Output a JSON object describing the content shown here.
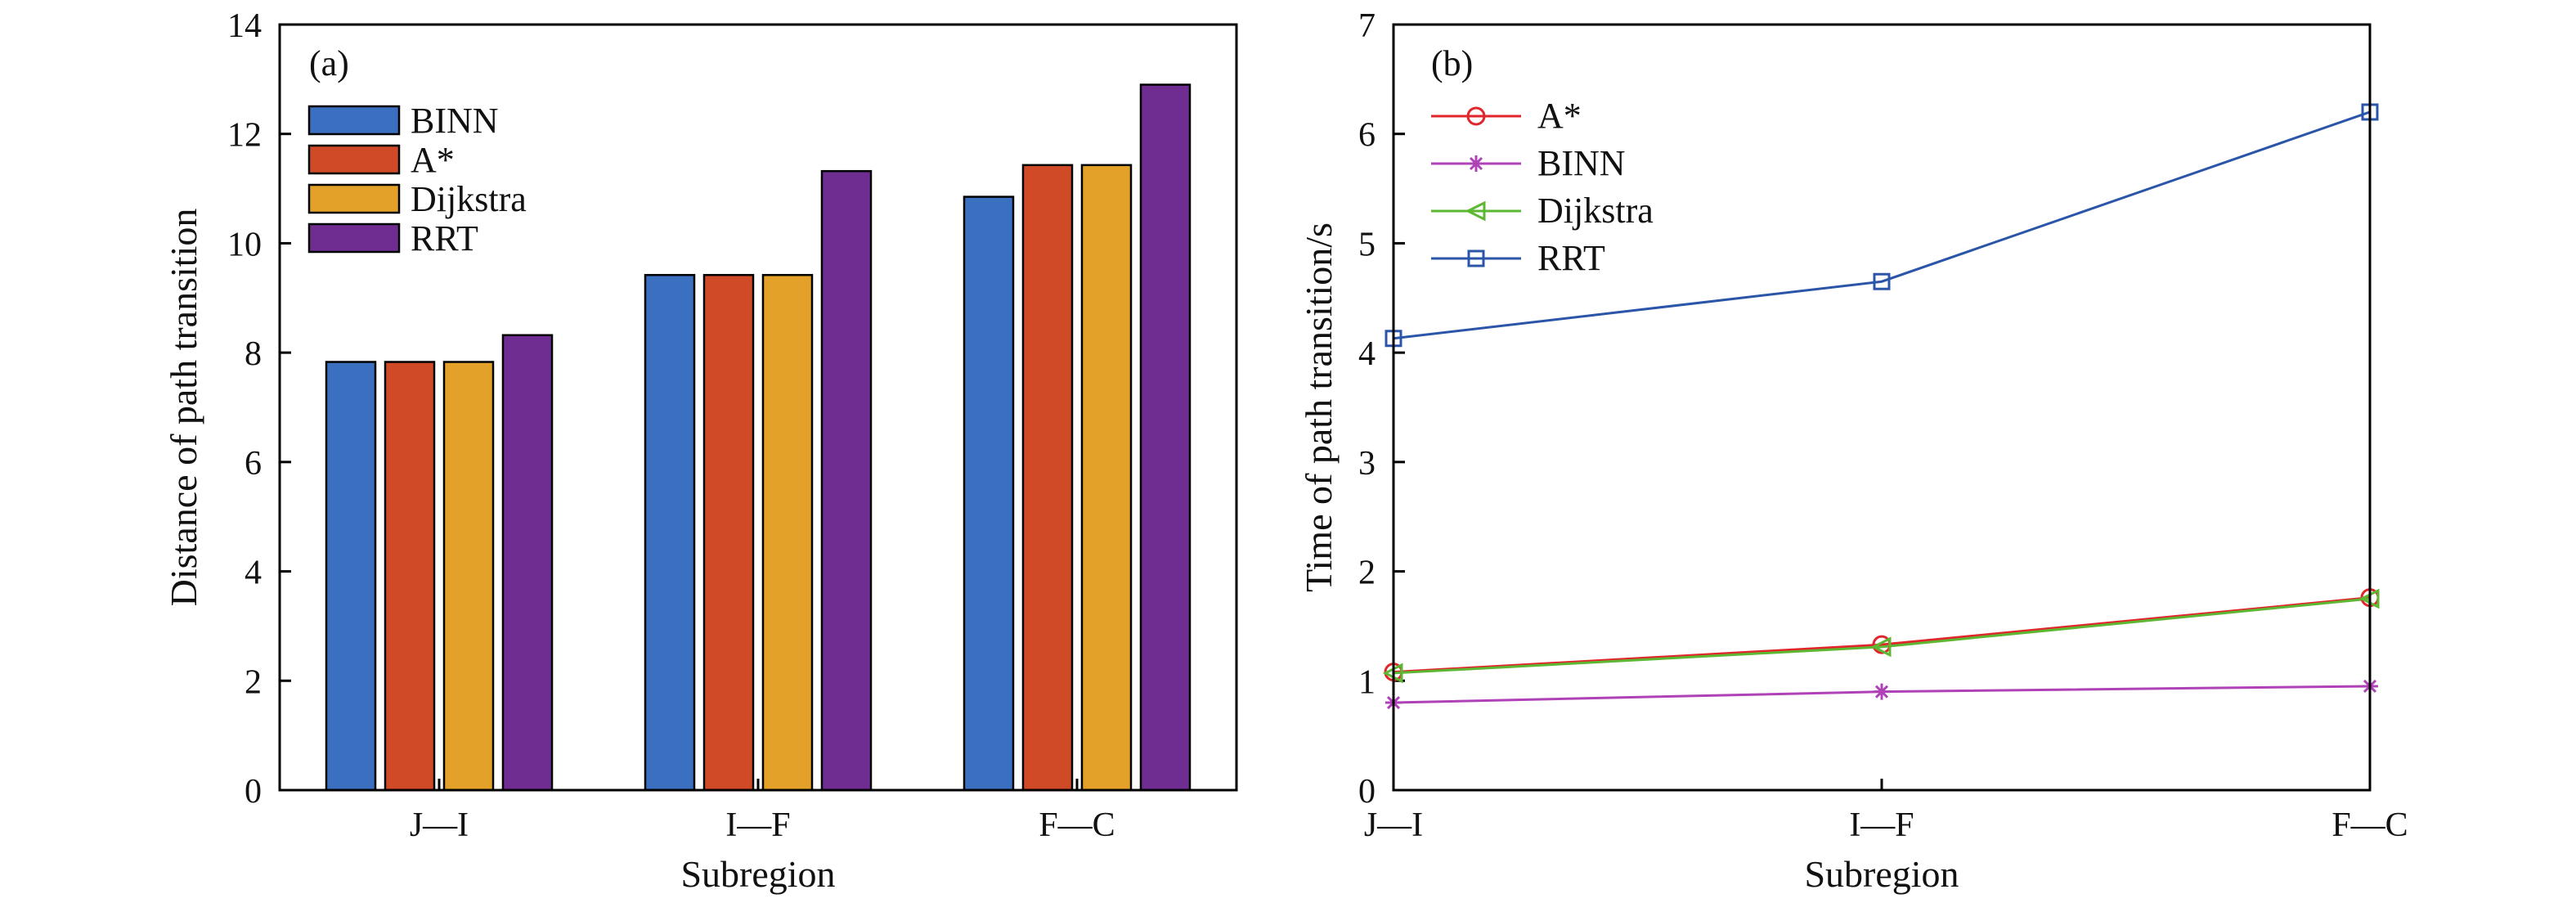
{
  "chart_data": [
    {
      "panel_label": "(a)",
      "type": "bar",
      "xlabel": "Subregion",
      "ylabel": "Distance of path transition",
      "categories": [
        "J—I",
        "I—F",
        "F—C"
      ],
      "ylim": [
        0,
        14
      ],
      "yticks": [
        0,
        2,
        4,
        6,
        8,
        10,
        12,
        14
      ],
      "ytick_labels": [
        "0",
        "2",
        "4",
        "6",
        "8",
        "10",
        "12",
        "14"
      ],
      "legend_position": "top-left",
      "series": [
        {
          "name": "BINN",
          "color": "#3b6fbf",
          "values": [
            7.83,
            9.42,
            10.85
          ]
        },
        {
          "name": "A*",
          "color": "#d04a28",
          "values": [
            7.83,
            9.42,
            11.43
          ]
        },
        {
          "name": "Dijkstra",
          "color": "#e3a12a",
          "values": [
            7.83,
            9.42,
            11.43
          ]
        },
        {
          "name": "RRT",
          "color": "#6f2d92",
          "values": [
            8.32,
            11.32,
            12.9
          ]
        }
      ]
    },
    {
      "panel_label": "(b)",
      "type": "line",
      "xlabel": "Subregion",
      "ylabel": "Time of path transition/s",
      "categories": [
        "J—I",
        "I—F",
        "F—C"
      ],
      "ylim": [
        0,
        7
      ],
      "yticks": [
        0,
        1,
        2,
        3,
        4,
        5,
        6,
        7
      ],
      "ytick_labels": [
        "0",
        "1",
        "2",
        "3",
        "4",
        "5",
        "6",
        "7"
      ],
      "legend_position": "top-left",
      "series": [
        {
          "name": "A*",
          "color": "#e0262a",
          "marker": "circle",
          "values": [
            1.08,
            1.33,
            1.76
          ]
        },
        {
          "name": "BINN",
          "color": "#b042b8",
          "marker": "asterisk",
          "values": [
            0.8,
            0.9,
            0.95
          ]
        },
        {
          "name": "Dijkstra",
          "color": "#5cb832",
          "marker": "triangle-left",
          "values": [
            1.07,
            1.31,
            1.75
          ]
        },
        {
          "name": "RRT",
          "color": "#2b55a8",
          "marker": "square",
          "values": [
            4.13,
            4.65,
            6.2
          ]
        }
      ]
    }
  ]
}
